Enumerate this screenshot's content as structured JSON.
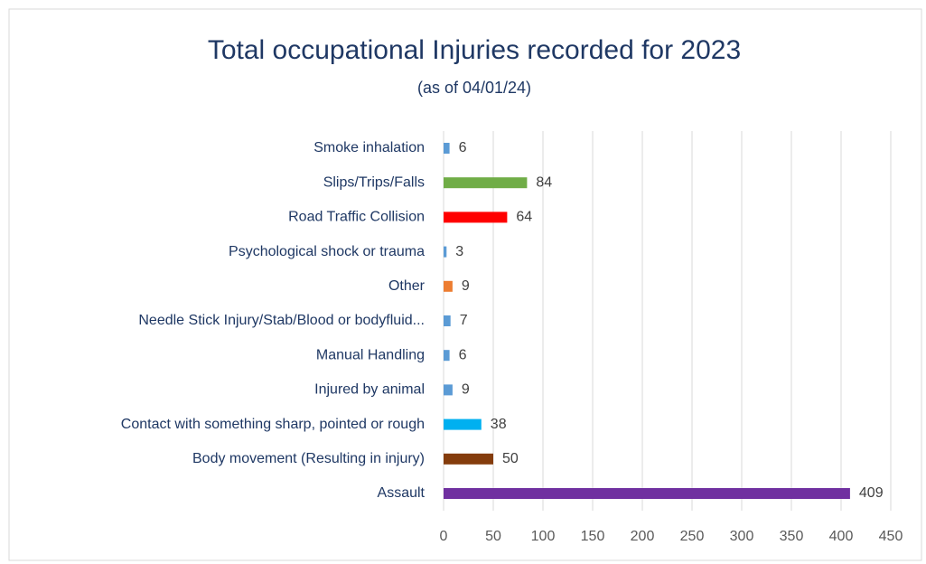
{
  "chart_data": {
    "type": "barh",
    "title": "Total occupational Injuries recorded for 2023",
    "subtitle": "(as of 04/01/24)",
    "categories": [
      "Assault",
      "Body movement (Resulting in injury)",
      "Contact with something sharp, pointed or rough",
      "Injured by animal",
      "Manual Handling",
      "Needle Stick Injury/Stab/Blood or bodyfluid...",
      "Other",
      "Psychological shock or trauma",
      "Road Traffic Collision",
      "Slips/Trips/Falls",
      "Smoke inhalation"
    ],
    "values": [
      409,
      50,
      38,
      9,
      6,
      7,
      9,
      3,
      64,
      84,
      6
    ],
    "colors": [
      "#7030a0",
      "#843c0c",
      "#00b0f0",
      "#5b9bd5",
      "#5b9bd5",
      "#5b9bd5",
      "#ed7d31",
      "#5b9bd5",
      "#ff0000",
      "#70ad47",
      "#5b9bd5"
    ],
    "xlim": [
      0,
      450
    ],
    "xticks": [
      0,
      50,
      100,
      150,
      200,
      250,
      300,
      350,
      400,
      450
    ],
    "grid": true
  }
}
